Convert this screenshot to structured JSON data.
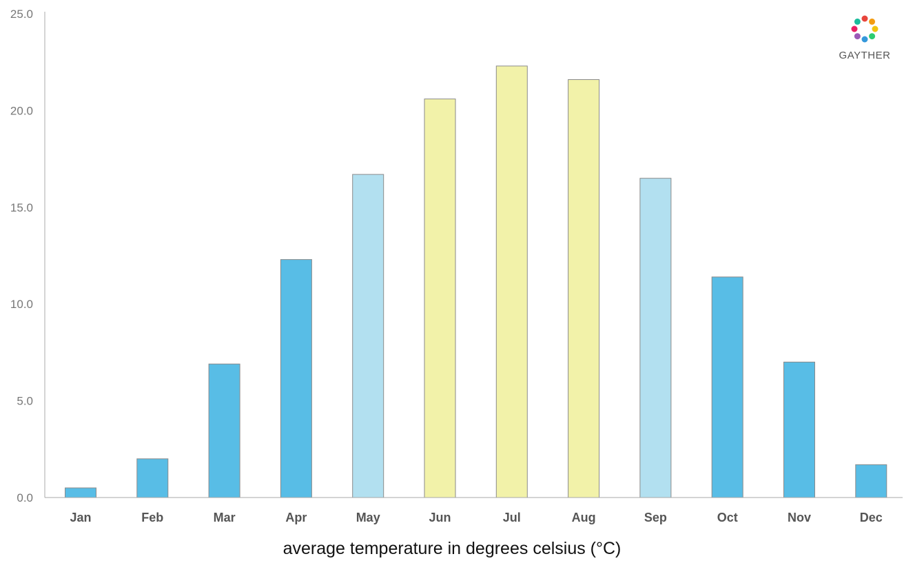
{
  "brand": {
    "name": "GAYTHER",
    "petal_colors": [
      "#e8453c",
      "#f39c12",
      "#f1c40f",
      "#2ecc71",
      "#3498db",
      "#9b59b6",
      "#e91e63",
      "#1abc9c"
    ]
  },
  "caption": "average temperature in degrees celsius (°C)",
  "colors": {
    "cold": "#58bde6",
    "mild": "#b2e0f0",
    "warm": "#f2f2a9",
    "bar_stroke": "#8a8a8a",
    "axis": "#a8a8a8",
    "tick_label": "#777777",
    "category_label": "#555555"
  },
  "chart_data": {
    "type": "bar",
    "title": "",
    "xlabel": "average temperature in degrees celsius (°C)",
    "ylabel": "",
    "ylim": [
      0,
      25
    ],
    "grid": false,
    "legend": "none",
    "y_ticks": [
      "0.0",
      "5.0",
      "10.0",
      "15.0",
      "20.0",
      "25.0"
    ],
    "y_tick_values": [
      0,
      5,
      10,
      15,
      20,
      25
    ],
    "categories": [
      "Jan",
      "Feb",
      "Mar",
      "Apr",
      "May",
      "Jun",
      "Jul",
      "Aug",
      "Sep",
      "Oct",
      "Nov",
      "Dec"
    ],
    "values": [
      0.5,
      2.0,
      6.9,
      12.3,
      16.7,
      20.6,
      22.3,
      21.6,
      16.5,
      11.4,
      7.0,
      1.7
    ],
    "bar_colors": [
      "#58bde6",
      "#58bde6",
      "#58bde6",
      "#58bde6",
      "#b2e0f0",
      "#f2f2a9",
      "#f2f2a9",
      "#f2f2a9",
      "#b2e0f0",
      "#58bde6",
      "#58bde6",
      "#58bde6"
    ]
  }
}
